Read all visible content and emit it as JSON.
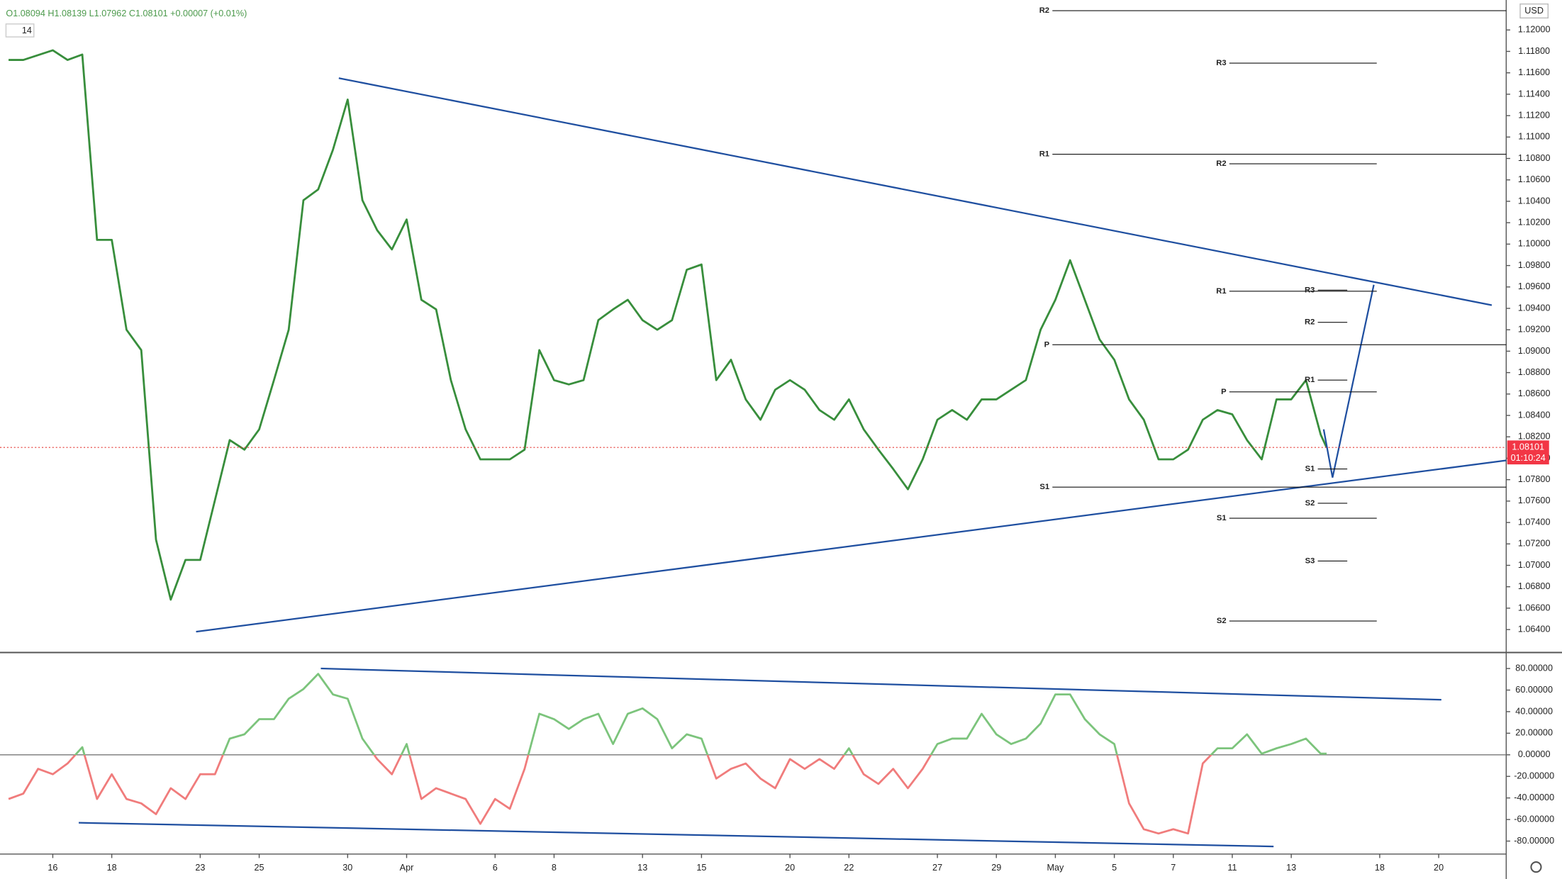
{
  "chart_data": [
    {
      "type": "line",
      "legend_text": "O1.08094 H1.08139 L1.07962 C1.08101 +0.00007 (+0.01%)",
      "indicator_label": "14",
      "currency": "USD",
      "color": "#388e3c",
      "x": [
        -1.5,
        -1,
        0,
        0.5,
        1,
        1.5,
        2,
        2.5,
        3,
        3.5,
        4,
        4.5,
        5,
        5.5,
        6,
        6.5,
        7,
        7.5,
        8,
        8.5,
        9,
        9.5,
        10,
        10.5,
        11,
        11.5,
        12,
        12.5,
        13,
        13.5,
        14,
        14.5,
        15,
        15.5,
        16,
        16.5,
        17,
        17.5,
        18,
        18.5,
        19,
        19.5,
        20,
        20.5,
        21,
        21.5,
        22,
        22.5,
        23,
        23.5,
        24,
        24.5,
        25,
        25.5,
        26,
        26.5,
        27,
        27.5,
        28,
        28.5,
        29,
        29.5,
        30,
        30.5,
        31,
        31.5,
        32,
        32.5,
        33,
        33.5,
        34,
        34.5,
        35,
        35.5,
        36,
        36.5,
        37,
        37.5,
        38,
        38.5,
        39,
        39.5,
        40,
        40.5,
        41,
        41.5,
        42,
        42.5,
        43,
        43.2
      ],
      "values": [
        1.1172,
        1.1172,
        1.1181,
        1.1172,
        1.1177,
        1.1004,
        1.1004,
        1.092,
        1.0901,
        1.0724,
        1.0668,
        1.0705,
        1.0705,
        1.0761,
        1.0817,
        1.0808,
        1.0827,
        1.0873,
        1.092,
        1.1041,
        1.1051,
        1.1088,
        1.1135,
        1.1041,
        1.1013,
        1.0995,
        1.1023,
        1.0948,
        1.0939,
        1.0873,
        1.0827,
        1.0799,
        1.0799,
        1.0799,
        1.0808,
        1.0901,
        1.0873,
        1.0869,
        1.0873,
        1.0929,
        1.0939,
        1.0948,
        1.0929,
        1.092,
        1.0929,
        1.0976,
        1.0981,
        1.0873,
        1.0892,
        1.0855,
        1.0836,
        1.0864,
        1.0873,
        1.0864,
        1.0845,
        1.0836,
        1.0855,
        1.0827,
        1.0808,
        1.079,
        1.0771,
        1.0799,
        1.0836,
        1.0845,
        1.0836,
        1.0855,
        1.0855,
        1.0864,
        1.0873,
        1.092,
        1.0948,
        1.0985,
        1.0948,
        1.0911,
        1.0892,
        1.0855,
        1.0836,
        1.0799,
        1.0799,
        1.0808,
        1.0836,
        1.0845,
        1.0841,
        1.0817,
        1.0799,
        1.0855,
        1.0855,
        1.0873,
        1.0822,
        1.08101
      ],
      "current_price": {
        "value": 1.08101,
        "label": "1.08101"
      },
      "countdown": "01:10:24",
      "xlim": [
        -1.79,
        49.29
      ],
      "ylim": [
        1.06195,
        1.1228
      ],
      "yticks": [
        {
          "value": 1.064,
          "label": "1.06400"
        },
        {
          "value": 1.066,
          "label": "1.06600"
        },
        {
          "value": 1.068,
          "label": "1.06800"
        },
        {
          "value": 1.07,
          "label": "1.07000"
        },
        {
          "value": 1.072,
          "label": "1.07200"
        },
        {
          "value": 1.074,
          "label": "1.07400"
        },
        {
          "value": 1.076,
          "label": "1.07600"
        },
        {
          "value": 1.078,
          "label": "1.07800"
        },
        {
          "value": 1.08,
          "label": "1.08000"
        },
        {
          "value": 1.082,
          "label": "1.08200"
        },
        {
          "value": 1.084,
          "label": "1.08400"
        },
        {
          "value": 1.086,
          "label": "1.08600"
        },
        {
          "value": 1.088,
          "label": "1.08800"
        },
        {
          "value": 1.09,
          "label": "1.09000"
        },
        {
          "value": 1.092,
          "label": "1.09200"
        },
        {
          "value": 1.094,
          "label": "1.09400"
        },
        {
          "value": 1.096,
          "label": "1.09600"
        },
        {
          "value": 1.098,
          "label": "1.09800"
        },
        {
          "value": 1.1,
          "label": "1.10000"
        },
        {
          "value": 1.102,
          "label": "1.10200"
        },
        {
          "value": 1.104,
          "label": "1.10400"
        },
        {
          "value": 1.106,
          "label": "1.10600"
        },
        {
          "value": 1.108,
          "label": "1.10800"
        },
        {
          "value": 1.11,
          "label": "1.11000"
        },
        {
          "value": 1.112,
          "label": "1.11200"
        },
        {
          "value": 1.114,
          "label": "1.11400"
        },
        {
          "value": 1.116,
          "label": "1.11600"
        },
        {
          "value": 1.118,
          "label": "1.11800"
        },
        {
          "value": 1.12,
          "label": "1.12000"
        }
      ],
      "pivots": [
        {
          "label": "R2",
          "value": 1.1218,
          "x": [
            33.9,
            49.29
          ]
        },
        {
          "label": "R1",
          "value": 1.1084,
          "x": [
            33.9,
            49.29
          ]
        },
        {
          "label": "P",
          "value": 1.0906,
          "x": [
            33.9,
            49.29
          ]
        },
        {
          "label": "S1",
          "value": 1.0773,
          "x": [
            33.9,
            49.29
          ]
        },
        {
          "label": "R3",
          "value": 1.1169,
          "x": [
            39.9,
            44.9
          ]
        },
        {
          "label": "R2",
          "value": 1.1075,
          "x": [
            39.9,
            44.9
          ]
        },
        {
          "label": "R1",
          "value": 1.0956,
          "x": [
            39.9,
            44.9
          ]
        },
        {
          "label": "P",
          "value": 1.0862,
          "x": [
            39.9,
            44.9
          ]
        },
        {
          "label": "S1",
          "value": 1.0744,
          "x": [
            39.9,
            44.9
          ]
        },
        {
          "label": "S2",
          "value": 1.0648,
          "x": [
            39.9,
            44.9
          ]
        },
        {
          "label": "R3",
          "value": 1.0957,
          "x": [
            42.9,
            43.9
          ]
        },
        {
          "label": "R2",
          "value": 1.0927,
          "x": [
            42.9,
            43.9
          ]
        },
        {
          "label": "R1",
          "value": 1.0873,
          "x": [
            42.9,
            43.9
          ]
        },
        {
          "label": "S1",
          "value": 1.079,
          "x": [
            42.9,
            43.9
          ]
        },
        {
          "label": "S2",
          "value": 1.0758,
          "x": [
            42.9,
            43.9
          ]
        },
        {
          "label": "S3",
          "value": 1.0704,
          "x": [
            42.9,
            43.9
          ]
        }
      ],
      "trendlines": [
        {
          "x": [
            9.7,
            48.8
          ],
          "y": [
            1.1155,
            1.0943
          ]
        },
        {
          "x": [
            4.86,
            49.29
          ],
          "y": [
            1.0638,
            1.0798
          ]
        },
        {
          "x": [
            43.1,
            43.4,
            44.8
          ],
          "y": [
            1.0827,
            1.0782,
            1.0962
          ]
        }
      ]
    },
    {
      "type": "line",
      "positive_color": "#7cc47c",
      "negative_color": "#f07c7c",
      "x": [
        -1.5,
        -1,
        -0.5,
        0,
        0.5,
        1,
        1.5,
        2,
        2.5,
        3,
        3.5,
        4,
        4.5,
        5,
        5.5,
        6,
        6.5,
        7,
        7.5,
        8,
        8.5,
        9,
        9.5,
        10,
        10.5,
        11,
        11.5,
        12,
        12.5,
        13,
        13.5,
        14,
        14.5,
        15,
        15.5,
        16,
        16.5,
        17,
        17.5,
        18,
        18.5,
        19,
        19.5,
        20,
        20.5,
        21,
        21.5,
        22,
        22.5,
        23,
        23.5,
        24,
        24.5,
        25,
        25.5,
        26,
        26.5,
        27,
        27.5,
        28,
        28.5,
        29,
        29.5,
        30,
        30.5,
        31,
        31.5,
        32,
        32.5,
        33,
        33.5,
        34,
        34.5,
        35,
        35.5,
        36,
        36.5,
        37,
        37.5,
        38,
        38.5,
        39,
        39.5,
        40,
        40.5,
        41,
        41.5,
        42,
        42.5,
        43,
        43.2
      ],
      "values": [
        -41,
        -36,
        -13,
        -18,
        -8,
        7,
        -41,
        -18,
        -41,
        -45,
        -55,
        -31,
        -41,
        -18,
        -18,
        15,
        19,
        33,
        33,
        52,
        61,
        75,
        56,
        52,
        15,
        -4,
        -18,
        10,
        -41,
        -31,
        -36,
        -41,
        -64,
        -41,
        -50,
        -13,
        38,
        33,
        24,
        33,
        38,
        10,
        38,
        43,
        33,
        6,
        19,
        15,
        -22,
        -13,
        -8,
        -22,
        -31,
        -4,
        -13,
        -4,
        -13,
        6,
        -18,
        -27,
        -13,
        -31,
        -13,
        10,
        15,
        15,
        38,
        19,
        10,
        15,
        29,
        56,
        56,
        33,
        19,
        10,
        -45,
        -69,
        -73,
        -69,
        -73,
        -8,
        6,
        6,
        19,
        1,
        6,
        10,
        15,
        1,
        1
      ],
      "xlim": [
        -1.79,
        49.29
      ],
      "ylim": [
        -91.1,
        93.9
      ],
      "yticks": [
        {
          "value": -80,
          "label": "-80.00000"
        },
        {
          "value": -60,
          "label": "-60.00000"
        },
        {
          "value": -40,
          "label": "-40.00000"
        },
        {
          "value": -20,
          "label": "-20.00000"
        },
        {
          "value": 0,
          "label": "0.00000"
        },
        {
          "value": 20,
          "label": "20.00000"
        },
        {
          "value": 40,
          "label": "40.00000"
        },
        {
          "value": 60,
          "label": "60.00000"
        },
        {
          "value": 80,
          "label": "80.00000"
        }
      ],
      "xticks": [
        {
          "value": 0,
          "label": "16"
        },
        {
          "value": 2,
          "label": "18"
        },
        {
          "value": 5,
          "label": "23"
        },
        {
          "value": 7,
          "label": "25"
        },
        {
          "value": 10,
          "label": "30"
        },
        {
          "value": 12,
          "label": "Apr"
        },
        {
          "value": 15,
          "label": "6"
        },
        {
          "value": 17,
          "label": "8"
        },
        {
          "value": 20,
          "label": "13"
        },
        {
          "value": 22,
          "label": "15"
        },
        {
          "value": 25,
          "label": "20"
        },
        {
          "value": 27,
          "label": "22"
        },
        {
          "value": 30,
          "label": "27"
        },
        {
          "value": 32,
          "label": "29"
        },
        {
          "value": 34,
          "label": "May"
        },
        {
          "value": 36,
          "label": "5"
        },
        {
          "value": 38,
          "label": "7"
        },
        {
          "value": 40,
          "label": "11"
        },
        {
          "value": 42,
          "label": "13"
        },
        {
          "value": 45,
          "label": "18"
        },
        {
          "value": 47,
          "label": "20"
        }
      ],
      "trendlines": [
        {
          "x": [
            9.09,
            47.09
          ],
          "y": [
            80,
            51
          ]
        },
        {
          "x": [
            0.88,
            41.4
          ],
          "y": [
            -63,
            -85
          ]
        }
      ]
    }
  ]
}
